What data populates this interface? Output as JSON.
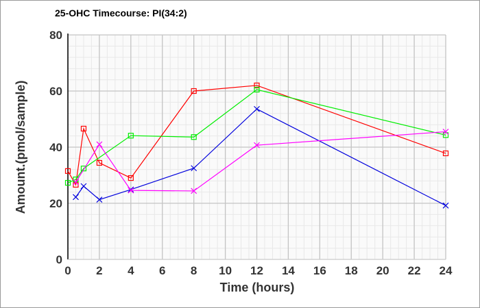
{
  "chart_data": {
    "type": "line",
    "title": "25-OHC Timecourse: PI(34:2)",
    "xlabel": "Time (hours)",
    "ylabel": "Amount.(pmol/sample)",
    "xlim": [
      0,
      24
    ],
    "ylim": [
      0,
      80
    ],
    "xticks": [
      0,
      2,
      4,
      6,
      8,
      10,
      12,
      14,
      16,
      18,
      20,
      22,
      24
    ],
    "yticks": [
      0,
      20,
      40,
      60,
      80
    ],
    "grid": true,
    "series": [
      {
        "name": "red",
        "color": "#ff0000",
        "marker": "square",
        "x": [
          0,
          0.5,
          1,
          2,
          4,
          8,
          12,
          24
        ],
        "y": [
          31.5,
          26.6,
          46.6,
          34.4,
          29.0,
          60.0,
          62.0,
          37.8
        ]
      },
      {
        "name": "green",
        "color": "#00ee00",
        "marker": "square",
        "x": [
          0,
          0.5,
          1,
          4,
          8,
          12,
          24
        ],
        "y": [
          27.3,
          28.5,
          32.4,
          44.1,
          43.6,
          60.5,
          44.3
        ]
      },
      {
        "name": "blue",
        "color": "#0000dd",
        "marker": "x",
        "x": [
          0.5,
          1,
          2,
          4,
          8,
          12,
          24
        ],
        "y": [
          22.2,
          26.1,
          21.3,
          24.9,
          32.5,
          53.6,
          19.2
        ]
      },
      {
        "name": "magenta",
        "color": "#ff00ff",
        "marker": "x",
        "x": [
          0.5,
          2,
          4,
          8,
          12,
          24
        ],
        "y": [
          27.5,
          41.0,
          24.6,
          24.4,
          40.7,
          45.5
        ]
      }
    ]
  }
}
